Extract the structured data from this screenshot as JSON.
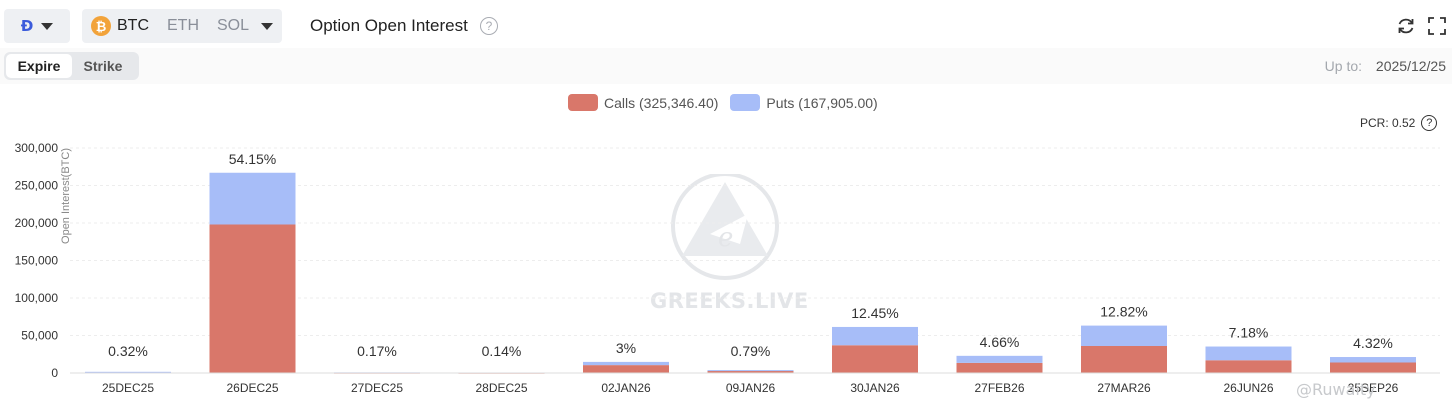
{
  "header": {
    "exchange_icon": "deribit-logo-icon",
    "coins": [
      "BTC",
      "ETH",
      "SOL"
    ],
    "selected_coin": "BTC",
    "btc_glyph": "₿",
    "title": "Option Open Interest",
    "help_glyph": "?"
  },
  "tabs": {
    "expire": "Expire",
    "strike": "Strike",
    "selected": "Expire"
  },
  "up_to": {
    "label": "Up to:",
    "value": "2025/12/25"
  },
  "pcr": "PCR: 0.52",
  "watermark": "GREEKS.LIVE",
  "corner_watermark": "@Ruwaity",
  "colors": {
    "calls": "#d9776a",
    "puts": "#a7bdf8",
    "accent": "#3b5bdb"
  },
  "chart_data": {
    "type": "bar",
    "stacked": true,
    "ylabel": "Open Interest(BTC)",
    "ylim": [
      0,
      300000
    ],
    "yticks": [
      "300,000",
      "250,000",
      "200,000",
      "150,000",
      "100,000",
      "50,000",
      "0"
    ],
    "categories": [
      "25DEC25",
      "26DEC25",
      "27DEC25",
      "28DEC25",
      "02JAN26",
      "09JAN26",
      "30JAN26",
      "27FEB26",
      "27MAR26",
      "26JUN26",
      "25SEP26"
    ],
    "series": [
      {
        "name": "Calls (325,346.40)",
        "values": [
          1100,
          198000,
          500,
          450,
          10500,
          3300,
          37000,
          13500,
          36000,
          17000,
          14000
        ]
      },
      {
        "name": "Puts (167,905.00)",
        "values": [
          500,
          69000,
          350,
          250,
          4300,
          600,
          24400,
          9400,
          27200,
          18300,
          7300
        ]
      }
    ],
    "data_labels": [
      "0.32%",
      "54.15%",
      "0.17%",
      "0.14%",
      "3%",
      "0.79%",
      "12.45%",
      "4.66%",
      "12.82%",
      "7.18%",
      "4.32%"
    ],
    "grid": true,
    "legend": "top-center"
  }
}
